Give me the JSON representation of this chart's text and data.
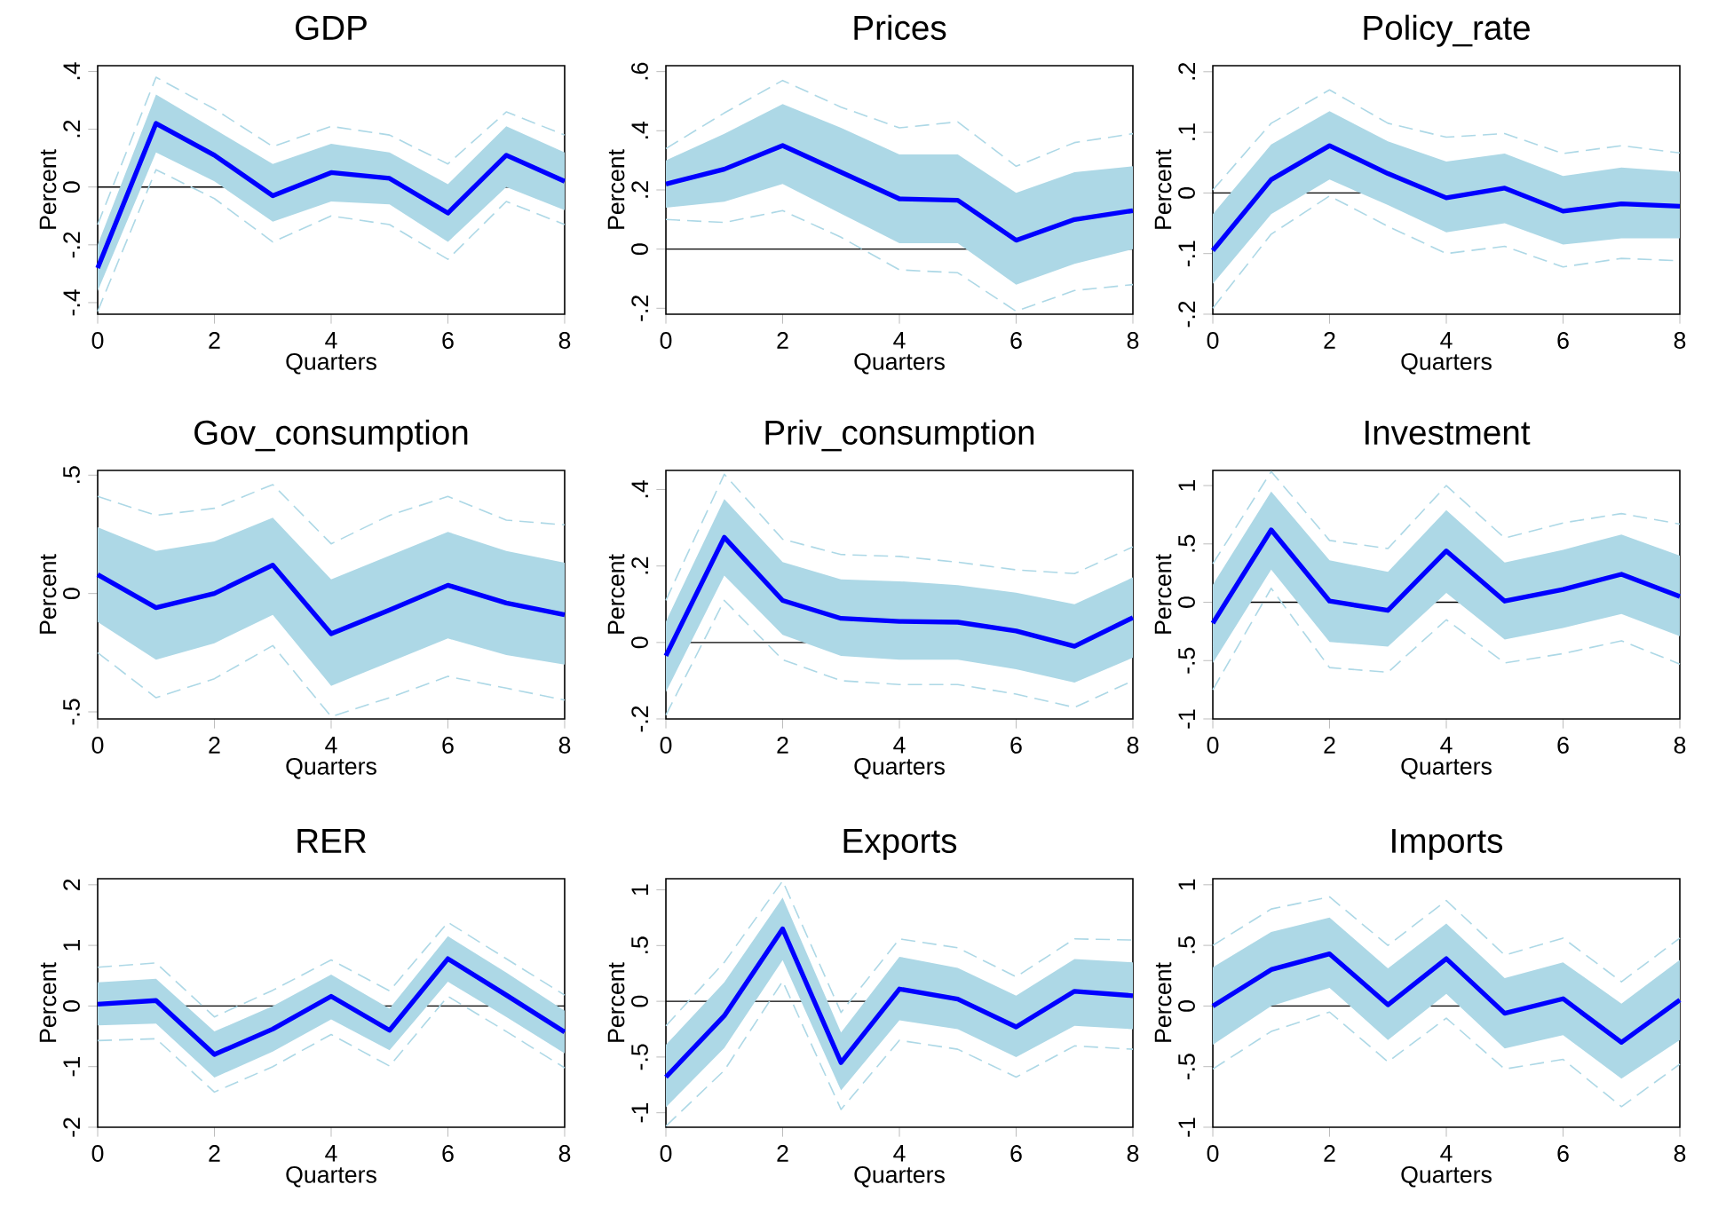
{
  "chart_data": [
    {
      "type": "line",
      "title": "GDP",
      "xlabel": "Quarters",
      "ylabel": "Percent",
      "x": [
        0,
        1,
        2,
        3,
        4,
        5,
        6,
        7,
        8
      ],
      "xlim": [
        0,
        8
      ],
      "xticks": [
        0,
        2,
        4,
        6,
        8
      ],
      "ylim": [
        -0.44,
        0.42
      ],
      "yticks": [
        {
          "value": -0.4,
          "label": "-.4"
        },
        {
          "value": -0.2,
          "label": "-.2"
        },
        0,
        {
          "value": 0.2,
          "label": ".2"
        },
        {
          "value": 0.4,
          "label": ".4"
        }
      ],
      "ref_lines": [
        {
          "axis": "y",
          "value": 0,
          "color": "#000000"
        }
      ],
      "series": [
        {
          "color": "#0000ff",
          "values": [
            -0.28,
            0.22,
            0.11,
            -0.03,
            0.05,
            0.03,
            -0.09,
            0.11,
            0.02
          ],
          "lower": [
            -0.36,
            0.12,
            0.02,
            -0.12,
            -0.05,
            -0.06,
            -0.19,
            0.0,
            -0.08
          ],
          "upper": [
            -0.2,
            0.32,
            0.2,
            0.08,
            0.15,
            0.12,
            0.01,
            0.21,
            0.12
          ]
        },
        {
          "color": "#add8e6",
          "line_style": "dashed",
          "values": [
            -0.13,
            0.38,
            0.27,
            0.14,
            0.21,
            0.18,
            0.08,
            0.26,
            0.18
          ]
        },
        {
          "color": "#add8e6",
          "line_style": "dashed",
          "values": [
            -0.43,
            0.06,
            -0.04,
            -0.19,
            -0.1,
            -0.13,
            -0.25,
            -0.05,
            -0.13
          ]
        }
      ]
    },
    {
      "type": "line",
      "title": "Prices",
      "xlabel": "Quarters",
      "ylabel": "Percent",
      "x": [
        0,
        1,
        2,
        3,
        4,
        5,
        6,
        7,
        8
      ],
      "xlim": [
        0,
        8
      ],
      "xticks": [
        0,
        2,
        4,
        6,
        8
      ],
      "ylim": [
        -0.22,
        0.62
      ],
      "yticks": [
        {
          "value": -0.2,
          "label": "-.2"
        },
        0,
        {
          "value": 0.2,
          "label": ".2"
        },
        {
          "value": 0.4,
          "label": ".4"
        },
        {
          "value": 0.6,
          "label": ".6"
        }
      ],
      "ref_lines": [
        {
          "axis": "y",
          "value": 0,
          "color": "#000000"
        }
      ],
      "series": [
        {
          "color": "#0000ff",
          "values": [
            0.22,
            0.27,
            0.35,
            0.26,
            0.17,
            0.165,
            0.03,
            0.1,
            0.13
          ],
          "lower": [
            0.14,
            0.16,
            0.22,
            0.12,
            0.02,
            0.02,
            -0.12,
            -0.05,
            0.0
          ],
          "upper": [
            0.3,
            0.39,
            0.49,
            0.41,
            0.32,
            0.32,
            0.19,
            0.26,
            0.28
          ]
        },
        {
          "color": "#add8e6",
          "line_style": "dashed",
          "values": [
            0.34,
            0.46,
            0.57,
            0.48,
            0.41,
            0.43,
            0.28,
            0.36,
            0.39
          ]
        },
        {
          "color": "#add8e6",
          "line_style": "dashed",
          "values": [
            0.1,
            0.09,
            0.13,
            0.04,
            -0.07,
            -0.08,
            -0.21,
            -0.14,
            -0.12
          ]
        }
      ]
    },
    {
      "type": "line",
      "title": "Policy_rate",
      "xlabel": "Quarters",
      "ylabel": "Percent",
      "x": [
        0,
        1,
        2,
        3,
        4,
        5,
        6,
        7,
        8
      ],
      "xlim": [
        0,
        8
      ],
      "xticks": [
        0,
        2,
        4,
        6,
        8
      ],
      "ylim": [
        -0.2,
        0.21
      ],
      "yticks": [
        {
          "value": -0.2,
          "label": "-.2"
        },
        {
          "value": -0.1,
          "label": "-.1"
        },
        0,
        {
          "value": 0.1,
          "label": ".1"
        },
        {
          "value": 0.2,
          "label": ".2"
        }
      ],
      "ref_lines": [
        {
          "axis": "y",
          "value": 0,
          "color": "#000000"
        }
      ],
      "series": [
        {
          "color": "#0000ff",
          "values": [
            -0.095,
            0.022,
            0.078,
            0.032,
            -0.008,
            0.008,
            -0.03,
            -0.018,
            -0.022
          ],
          "lower": [
            -0.15,
            -0.035,
            0.022,
            -0.02,
            -0.065,
            -0.05,
            -0.085,
            -0.075,
            -0.075
          ],
          "upper": [
            -0.035,
            0.08,
            0.135,
            0.085,
            0.052,
            0.065,
            0.028,
            0.042,
            0.035
          ]
        },
        {
          "color": "#add8e6",
          "line_style": "dashed",
          "values": [
            0.005,
            0.115,
            0.17,
            0.115,
            0.092,
            0.098,
            0.065,
            0.078,
            0.066
          ]
        },
        {
          "color": "#add8e6",
          "line_style": "dashed",
          "values": [
            -0.19,
            -0.068,
            -0.005,
            -0.055,
            -0.1,
            -0.088,
            -0.122,
            -0.108,
            -0.112
          ]
        }
      ]
    },
    {
      "type": "line",
      "title": "Gov_consumption",
      "xlabel": "Quarters",
      "ylabel": "Percent",
      "x": [
        0,
        1,
        2,
        3,
        4,
        5,
        6,
        7,
        8
      ],
      "xlim": [
        0,
        8
      ],
      "xticks": [
        0,
        2,
        4,
        6,
        8
      ],
      "ylim": [
        -0.53,
        0.52
      ],
      "yticks": [
        {
          "value": -0.5,
          "label": "-.5"
        },
        0,
        {
          "value": 0.5,
          "label": ".5"
        }
      ],
      "series": [
        {
          "color": "#0000ff",
          "values": [
            0.08,
            -0.06,
            0.0,
            0.12,
            -0.17,
            -0.07,
            0.035,
            -0.04,
            -0.09
          ],
          "lower": [
            -0.12,
            -0.28,
            -0.21,
            -0.09,
            -0.39,
            -0.29,
            -0.19,
            -0.26,
            -0.3
          ],
          "upper": [
            0.28,
            0.18,
            0.22,
            0.32,
            0.06,
            0.16,
            0.26,
            0.18,
            0.13
          ]
        },
        {
          "color": "#add8e6",
          "line_style": "dashed",
          "values": [
            0.41,
            0.33,
            0.36,
            0.46,
            0.21,
            0.33,
            0.41,
            0.31,
            0.29
          ]
        },
        {
          "color": "#add8e6",
          "line_style": "dashed",
          "values": [
            -0.25,
            -0.44,
            -0.36,
            -0.22,
            -0.52,
            -0.44,
            -0.35,
            -0.4,
            -0.45
          ]
        }
      ]
    },
    {
      "type": "line",
      "title": "Priv_consumption",
      "xlabel": "Quarters",
      "ylabel": "Percent",
      "x": [
        0,
        1,
        2,
        3,
        4,
        5,
        6,
        7,
        8
      ],
      "xlim": [
        0,
        8
      ],
      "xticks": [
        0,
        2,
        4,
        6,
        8
      ],
      "ylim": [
        -0.2,
        0.45
      ],
      "yticks": [
        {
          "value": -0.2,
          "label": "-.2"
        },
        0,
        {
          "value": 0.2,
          "label": ".2"
        },
        {
          "value": 0.4,
          "label": ".4"
        }
      ],
      "ref_lines": [
        {
          "axis": "y",
          "value": 0,
          "color": "#000000"
        }
      ],
      "series": [
        {
          "color": "#0000ff",
          "values": [
            -0.035,
            0.275,
            0.11,
            0.063,
            0.055,
            0.053,
            0.03,
            -0.01,
            0.065
          ],
          "lower": [
            -0.13,
            0.175,
            0.02,
            -0.035,
            -0.045,
            -0.045,
            -0.07,
            -0.105,
            -0.04
          ],
          "upper": [
            0.055,
            0.375,
            0.21,
            0.165,
            0.16,
            0.15,
            0.13,
            0.1,
            0.17
          ]
        },
        {
          "color": "#add8e6",
          "line_style": "dashed",
          "values": [
            0.11,
            0.44,
            0.27,
            0.23,
            0.225,
            0.21,
            0.19,
            0.18,
            0.25
          ]
        },
        {
          "color": "#add8e6",
          "line_style": "dashed",
          "values": [
            -0.19,
            0.11,
            -0.045,
            -0.1,
            -0.11,
            -0.11,
            -0.135,
            -0.17,
            -0.1
          ]
        }
      ]
    },
    {
      "type": "line",
      "title": "Investment",
      "xlabel": "Quarters",
      "ylabel": "Percent",
      "x": [
        0,
        1,
        2,
        3,
        4,
        5,
        6,
        7,
        8
      ],
      "xlim": [
        0,
        8
      ],
      "xticks": [
        0,
        2,
        4,
        6,
        8
      ],
      "ylim": [
        -1,
        1.13
      ],
      "yticks": [
        -1,
        {
          "value": -0.5,
          "label": "-.5"
        },
        0,
        {
          "value": 0.5,
          "label": ".5"
        },
        1
      ],
      "ref_lines": [
        {
          "axis": "y",
          "value": 0,
          "color": "#000000"
        }
      ],
      "series": [
        {
          "color": "#0000ff",
          "values": [
            -0.18,
            0.62,
            0.01,
            -0.07,
            0.44,
            0.01,
            0.11,
            0.24,
            0.05
          ],
          "lower": [
            -0.52,
            0.28,
            -0.34,
            -0.38,
            0.08,
            -0.32,
            -0.22,
            -0.1,
            -0.29
          ],
          "upper": [
            0.15,
            0.95,
            0.36,
            0.26,
            0.79,
            0.34,
            0.45,
            0.58,
            0.4
          ]
        },
        {
          "color": "#add8e6",
          "line_style": "dashed",
          "values": [
            0.33,
            1.12,
            0.53,
            0.46,
            1.0,
            0.55,
            0.68,
            0.76,
            0.67
          ]
        },
        {
          "color": "#add8e6",
          "line_style": "dashed",
          "values": [
            -0.75,
            0.12,
            -0.56,
            -0.6,
            -0.15,
            -0.52,
            -0.44,
            -0.33,
            -0.53
          ]
        }
      ]
    },
    {
      "type": "line",
      "title": "RER",
      "xlabel": "Quarters",
      "ylabel": "Percent",
      "x": [
        0,
        1,
        2,
        3,
        4,
        5,
        6,
        7,
        8
      ],
      "xlim": [
        0,
        8
      ],
      "xticks": [
        0,
        2,
        4,
        6,
        8
      ],
      "ylim": [
        -2,
        2.1
      ],
      "yticks": [
        -2,
        -1,
        0,
        1,
        2
      ],
      "ref_lines": [
        {
          "axis": "y",
          "value": 0,
          "color": "#000000"
        }
      ],
      "series": [
        {
          "color": "#0000ff",
          "values": [
            0.03,
            0.09,
            -0.8,
            -0.38,
            0.16,
            -0.4,
            0.78,
            0.18,
            -0.43
          ],
          "lower": [
            -0.32,
            -0.29,
            -1.18,
            -0.75,
            -0.22,
            -0.73,
            0.4,
            -0.18,
            -0.78
          ],
          "upper": [
            0.39,
            0.45,
            -0.42,
            0.0,
            0.52,
            -0.04,
            1.15,
            0.55,
            -0.08
          ]
        },
        {
          "color": "#add8e6",
          "line_style": "dashed",
          "values": [
            0.64,
            0.71,
            -0.18,
            0.26,
            0.76,
            0.25,
            1.38,
            0.78,
            0.18
          ]
        },
        {
          "color": "#add8e6",
          "line_style": "dashed",
          "values": [
            -0.57,
            -0.54,
            -1.42,
            -1.0,
            -0.47,
            -0.99,
            0.16,
            -0.42,
            -1.02
          ]
        }
      ]
    },
    {
      "type": "line",
      "title": "Exports",
      "xlabel": "Quarters",
      "ylabel": "Percent",
      "x": [
        0,
        1,
        2,
        3,
        4,
        5,
        6,
        7,
        8
      ],
      "xlim": [
        0,
        8
      ],
      "xticks": [
        0,
        2,
        4,
        6,
        8
      ],
      "ylim": [
        -1.13,
        1.1
      ],
      "yticks": [
        -1,
        {
          "value": -0.5,
          "label": "-.5"
        },
        0,
        {
          "value": 0.5,
          "label": ".5"
        },
        1
      ],
      "ref_lines": [
        {
          "axis": "y",
          "value": 0,
          "color": "#000000"
        }
      ],
      "series": [
        {
          "color": "#0000ff",
          "values": [
            -0.68,
            -0.13,
            0.65,
            -0.55,
            0.11,
            0.02,
            -0.23,
            0.09,
            0.05
          ],
          "lower": [
            -0.95,
            -0.42,
            0.37,
            -0.8,
            -0.17,
            -0.25,
            -0.5,
            -0.22,
            -0.25
          ],
          "upper": [
            -0.39,
            0.17,
            0.93,
            -0.28,
            0.4,
            0.3,
            0.05,
            0.38,
            0.35
          ]
        },
        {
          "color": "#add8e6",
          "line_style": "dashed",
          "values": [
            -0.22,
            0.35,
            1.08,
            -0.1,
            0.56,
            0.48,
            0.22,
            0.56,
            0.55
          ]
        },
        {
          "color": "#add8e6",
          "line_style": "dashed",
          "values": [
            -1.12,
            -0.62,
            0.18,
            -0.97,
            -0.35,
            -0.43,
            -0.68,
            -0.4,
            -0.43
          ]
        }
      ]
    },
    {
      "type": "line",
      "title": "Imports",
      "xlabel": "Quarters",
      "ylabel": "Percent",
      "x": [
        0,
        1,
        2,
        3,
        4,
        5,
        6,
        7,
        8
      ],
      "xlim": [
        0,
        8
      ],
      "xticks": [
        0,
        2,
        4,
        6,
        8
      ],
      "ylim": [
        -1,
        1.05
      ],
      "yticks": [
        -1,
        {
          "value": -0.5,
          "label": "-.5"
        },
        0,
        {
          "value": 0.5,
          "label": ".5"
        },
        1
      ],
      "ref_lines": [
        {
          "axis": "y",
          "value": 0,
          "color": "#000000"
        }
      ],
      "series": [
        {
          "color": "#0000ff",
          "values": [
            0.0,
            0.3,
            0.43,
            0.01,
            0.39,
            -0.06,
            0.06,
            -0.3,
            0.05
          ],
          "lower": [
            -0.32,
            0.0,
            0.15,
            -0.28,
            0.1,
            -0.35,
            -0.24,
            -0.6,
            -0.28
          ],
          "upper": [
            0.32,
            0.61,
            0.73,
            0.31,
            0.68,
            0.23,
            0.36,
            0.02,
            0.38
          ]
        },
        {
          "color": "#add8e6",
          "line_style": "dashed",
          "values": [
            0.5,
            0.8,
            0.9,
            0.5,
            0.87,
            0.42,
            0.56,
            0.2,
            0.56
          ]
        },
        {
          "color": "#add8e6",
          "line_style": "dashed",
          "values": [
            -0.52,
            -0.21,
            -0.05,
            -0.46,
            -0.1,
            -0.52,
            -0.44,
            -0.83,
            -0.48
          ]
        }
      ]
    }
  ]
}
